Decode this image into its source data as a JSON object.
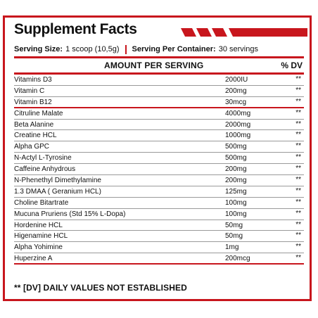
{
  "title": "Supplement Facts",
  "serving": {
    "size_label": "Serving Size:",
    "size_value": "1 scoop (10,5g)",
    "container_label": "Serving Per Container:",
    "container_value": "30 servings"
  },
  "header": {
    "amount_label": "AMOUNT PER SERVING",
    "dv_label": "% DV"
  },
  "ingredients": [
    {
      "name": "Vitamins D3",
      "amount": "2000IU",
      "dv": "**"
    },
    {
      "name": "Vitamin C",
      "amount": "200mg",
      "dv": "**"
    },
    {
      "name": "Vitamin B12",
      "amount": "30mcg",
      "dv": "**"
    },
    {
      "name": "Citruline Malate",
      "amount": "4000mg",
      "dv": "**"
    },
    {
      "name": "Beta Alanine",
      "amount": "2000mg",
      "dv": "**"
    },
    {
      "name": "Creatine HCL",
      "amount": "1000mg",
      "dv": "**"
    },
    {
      "name": "Alpha GPC",
      "amount": "500mg",
      "dv": "**"
    },
    {
      "name": "N-Actyl L-Tyrosine",
      "amount": "500mg",
      "dv": "**"
    },
    {
      "name": "Caffeine Anhydrous",
      "amount": "200mg",
      "dv": "**"
    },
    {
      "name": "N-Phenethyl Dimethylamine",
      "amount": "200mg",
      "dv": "**"
    },
    {
      "name": "1.3 DMAA ( Geranium HCL)",
      "amount": "125mg",
      "dv": "**"
    },
    {
      "name": "Choline Bitartrate",
      "amount": "100mg",
      "dv": "**"
    },
    {
      "name": "Mucuna Pruriens (Std 15% L-Dopa)",
      "amount": "100mg",
      "dv": "**"
    },
    {
      "name": "Hordenine HCL",
      "amount": "50mg",
      "dv": "**"
    },
    {
      "name": "Higenamine HCL",
      "amount": "50mg",
      "dv": "**"
    },
    {
      "name": "Alpha Yohimine",
      "amount": "1mg",
      "dv": "**"
    },
    {
      "name": "Huperzine A",
      "amount": "200mcg",
      "dv": "**"
    }
  ],
  "footer": "** [DV] DAILY VALUES NOT ESTABLISHED",
  "colors": {
    "accent": "#c8161d",
    "text": "#111111"
  }
}
